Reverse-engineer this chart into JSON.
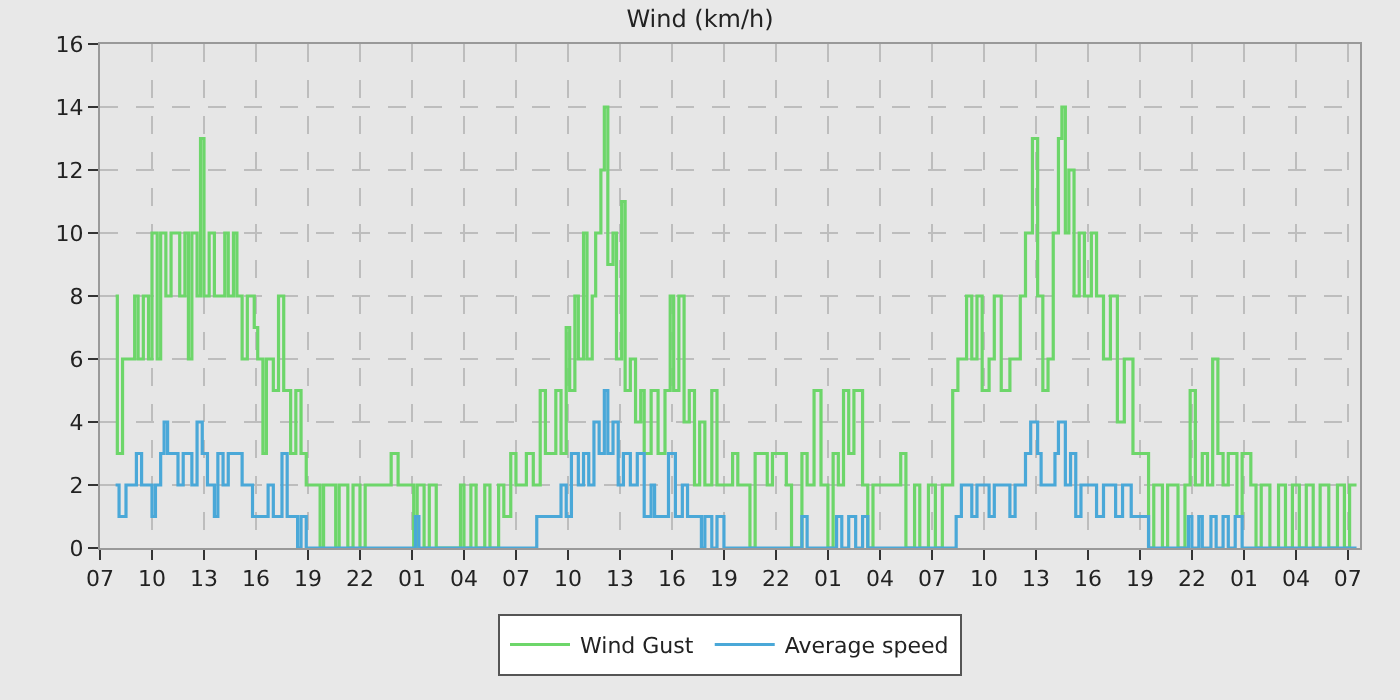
{
  "chart_data": {
    "type": "step",
    "title": "Wind (km/h)",
    "legend": "bottom",
    "grid": true,
    "marker": "none",
    "line_style": "solid",
    "xlim": [
      "--01-01T07:00",
      "--01-04T07:42"
    ],
    "xticks": [
      {
        "value": "--01-01T07:00",
        "label": "07"
      },
      {
        "value": "--01-01T10:00",
        "label": "10"
      },
      {
        "value": "--01-01T13:00",
        "label": "13"
      },
      {
        "value": "--01-01T16:00",
        "label": "16"
      },
      {
        "value": "--01-01T19:00",
        "label": "19"
      },
      {
        "value": "--01-01T22:00",
        "label": "22"
      },
      {
        "value": "--01-02T01:00",
        "label": "01"
      },
      {
        "value": "--01-02T04:00",
        "label": "04"
      },
      {
        "value": "--01-02T07:00",
        "label": "07"
      },
      {
        "value": "--01-02T10:00",
        "label": "10"
      },
      {
        "value": "--01-02T13:00",
        "label": "13"
      },
      {
        "value": "--01-02T16:00",
        "label": "16"
      },
      {
        "value": "--01-02T19:00",
        "label": "19"
      },
      {
        "value": "--01-02T22:00",
        "label": "22"
      },
      {
        "value": "--01-03T01:00",
        "label": "01"
      },
      {
        "value": "--01-03T04:00",
        "label": "04"
      },
      {
        "value": "--01-03T07:00",
        "label": "07"
      },
      {
        "value": "--01-03T10:00",
        "label": "10"
      },
      {
        "value": "--01-03T13:00",
        "label": "13"
      },
      {
        "value": "--01-03T16:00",
        "label": "16"
      },
      {
        "value": "--01-03T19:00",
        "label": "19"
      },
      {
        "value": "--01-03T22:00",
        "label": "22"
      },
      {
        "value": "--01-04T01:00",
        "label": "01"
      },
      {
        "value": "--01-04T04:00",
        "label": "04"
      },
      {
        "value": "--01-04T07:00",
        "label": "07"
      }
    ],
    "ylim": [
      0,
      16
    ],
    "yticks": [
      0,
      2,
      4,
      6,
      8,
      10,
      12,
      14,
      16
    ],
    "series": [
      {
        "name": "Wind Gust",
        "color": "#6dd66a",
        "x": [
          "--01-01T07:54",
          "--01-01T08:00",
          "--01-01T08:18",
          "--01-01T09:00",
          "--01-01T09:12",
          "--01-01T09:30",
          "--01-01T09:48",
          "--01-01T10:00",
          "--01-01T10:18",
          "--01-01T10:30",
          "--01-01T10:48",
          "--01-01T11:06",
          "--01-01T11:36",
          "--01-01T11:54",
          "--01-01T12:06",
          "--01-01T12:18",
          "--01-01T12:36",
          "--01-01T12:48",
          "--01-01T13:00",
          "--01-01T13:18",
          "--01-01T13:36",
          "--01-01T14:12",
          "--01-01T14:24",
          "--01-01T14:42",
          "--01-01T14:54",
          "--01-01T15:12",
          "--01-01T15:30",
          "--01-01T15:54",
          "--01-01T16:06",
          "--01-01T16:24",
          "--01-01T16:36",
          "--01-01T17:00",
          "--01-01T17:18",
          "--01-01T17:36",
          "--01-01T18:00",
          "--01-01T18:18",
          "--01-01T18:36",
          "--01-01T18:54",
          "--01-01T19:42",
          "--01-01T19:54",
          "--01-01T20:36",
          "--01-01T20:48",
          "--01-01T21:18",
          "--01-01T21:36",
          "--01-01T22:00",
          "--01-01T22:18",
          "--01-01T23:48",
          "--01-02T00:12",
          "--01-02T01:06",
          "--01-02T01:18",
          "--01-02T01:42",
          "--01-02T02:00",
          "--01-02T02:24",
          "--01-02T02:42",
          "--01-02T03:48",
          "--01-02T04:00",
          "--01-02T04:24",
          "--01-02T04:42",
          "--01-02T05:12",
          "--01-02T05:30",
          "--01-02T06:00",
          "--01-02T06:18",
          "--01-02T06:42",
          "--01-02T07:00",
          "--01-02T07:36",
          "--01-02T08:00",
          "--01-02T08:24",
          "--01-02T08:42",
          "--01-02T09:18",
          "--01-02T09:36",
          "--01-02T09:54",
          "--01-02T10:06",
          "--01-02T10:24",
          "--01-02T10:36",
          "--01-02T10:54",
          "--01-02T11:06",
          "--01-02T11:24",
          "--01-02T11:36",
          "--01-02T11:54",
          "--01-02T12:06",
          "--01-02T12:18",
          "--01-02T12:36",
          "--01-02T12:48",
          "--01-02T13:06",
          "--01-02T13:18",
          "--01-02T13:36",
          "--01-02T13:54",
          "--01-02T14:12",
          "--01-02T14:24",
          "--01-02T14:48",
          "--01-02T15:12",
          "--01-02T15:36",
          "--01-02T15:54",
          "--01-02T16:06",
          "--01-02T16:24",
          "--01-02T16:42",
          "--01-02T17:00",
          "--01-02T17:18",
          "--01-02T17:36",
          "--01-02T17:54",
          "--01-02T18:18",
          "--01-02T18:36",
          "--01-02T19:00",
          "--01-02T19:30",
          "--01-02T19:48",
          "--01-02T20:30",
          "--01-02T20:48",
          "--01-02T21:30",
          "--01-02T21:48",
          "--01-02T22:36",
          "--01-02T22:54",
          "--01-02T23:30",
          "--01-02T23:48",
          "--01-03T00:12",
          "--01-03T00:36",
          "--01-03T01:00",
          "--01-03T01:18",
          "--01-03T01:36",
          "--01-03T01:54",
          "--01-03T02:12",
          "--01-03T02:30",
          "--01-03T03:00",
          "--01-03T03:18",
          "--01-03T03:36",
          "--01-03T04:00",
          "--01-03T05:12",
          "--01-03T05:30",
          "--01-03T06:00",
          "--01-03T06:18",
          "--01-03T06:48",
          "--01-03T07:12",
          "--01-03T07:36",
          "--01-03T08:12",
          "--01-03T08:30",
          "--01-03T09:00",
          "--01-03T09:18",
          "--01-03T09:36",
          "--01-03T09:54",
          "--01-03T10:18",
          "--01-03T10:36",
          "--01-03T11:00",
          "--01-03T11:30",
          "--01-03T12:06",
          "--01-03T12:24",
          "--01-03T12:48",
          "--01-03T13:06",
          "--01-03T13:24",
          "--01-03T13:42",
          "--01-03T14:00",
          "--01-03T14:18",
          "--01-03T14:30",
          "--01-03T14:42",
          "--01-03T14:54",
          "--01-03T15:12",
          "--01-03T15:30",
          "--01-03T15:48",
          "--01-03T16:12",
          "--01-03T16:30",
          "--01-03T16:54",
          "--01-03T17:18",
          "--01-03T17:42",
          "--01-03T18:06",
          "--01-03T18:36",
          "--01-03T19:30",
          "--01-03T19:48",
          "--01-03T20:18",
          "--01-03T20:36",
          "--01-03T21:12",
          "--01-03T21:36",
          "--01-03T21:54",
          "--01-03T22:12",
          "--01-03T22:36",
          "--01-03T22:54",
          "--01-03T23:12",
          "--01-03T23:30",
          "--01-03T23:48",
          "--01-04T00:06",
          "--01-04T00:36",
          "--01-04T00:54",
          "--01-04T01:24",
          "--01-04T01:42",
          "--01-04T02:00",
          "--01-04T02:30",
          "--01-04T03:00",
          "--01-04T03:24",
          "--01-04T03:48",
          "--01-04T04:12",
          "--01-04T04:36",
          "--01-04T05:00",
          "--01-04T05:24",
          "--01-04T05:54",
          "--01-04T06:24",
          "--01-04T06:48",
          "--01-04T07:06",
          "--01-04T07:30"
        ],
        "values": [
          8,
          3,
          6,
          8,
          6,
          8,
          6,
          10,
          6,
          10,
          8,
          10,
          8,
          10,
          6,
          10,
          8,
          13,
          8,
          10,
          8,
          10,
          8,
          10,
          8,
          6,
          8,
          7,
          6,
          3,
          6,
          5,
          8,
          5,
          3,
          5,
          3,
          2,
          0,
          2,
          0,
          2,
          0,
          2,
          0,
          2,
          3,
          2,
          0,
          2,
          0,
          2,
          0,
          0,
          2,
          0,
          2,
          0,
          2,
          0,
          2,
          1,
          3,
          2,
          3,
          2,
          5,
          3,
          5,
          3,
          7,
          5,
          8,
          6,
          10,
          6,
          8,
          10,
          12,
          14,
          9,
          10,
          6,
          11,
          5,
          6,
          4,
          5,
          3,
          5,
          3,
          5,
          8,
          5,
          8,
          4,
          5,
          2,
          4,
          2,
          5,
          2,
          2,
          3,
          2,
          0,
          3,
          2,
          3,
          2,
          0,
          3,
          2,
          5,
          2,
          0,
          3,
          2,
          5,
          3,
          5,
          2,
          0,
          2,
          2,
          3,
          0,
          2,
          0,
          2,
          0,
          2,
          5,
          6,
          8,
          6,
          8,
          5,
          6,
          8,
          5,
          6,
          8,
          10,
          13,
          8,
          5,
          6,
          10,
          13,
          14,
          10,
          12,
          8,
          10,
          8,
          10,
          8,
          6,
          8,
          4,
          6,
          3,
          0,
          2,
          0,
          2,
          0,
          2,
          5,
          2,
          3,
          2,
          6,
          3,
          2,
          3,
          1,
          3,
          2,
          0,
          2,
          0,
          2,
          0,
          2,
          0,
          2,
          0,
          2,
          0,
          2,
          0,
          2,
          2
        ]
      },
      {
        "name": "Average speed",
        "color": "#4aa8d8",
        "x": [
          "--01-01T07:54",
          "--01-01T08:06",
          "--01-01T08:30",
          "--01-01T09:06",
          "--01-01T09:24",
          "--01-01T10:00",
          "--01-01T10:12",
          "--01-01T10:30",
          "--01-01T10:42",
          "--01-01T10:54",
          "--01-01T11:30",
          "--01-01T11:48",
          "--01-01T12:18",
          "--01-01T12:36",
          "--01-01T12:54",
          "--01-01T13:12",
          "--01-01T13:36",
          "--01-01T13:48",
          "--01-01T14:06",
          "--01-01T14:24",
          "--01-01T15:12",
          "--01-01T15:48",
          "--01-01T16:42",
          "--01-01T17:00",
          "--01-01T17:30",
          "--01-01T17:48",
          "--01-01T18:24",
          "--01-01T18:36",
          "--01-01T18:54",
          "--01-02T01:12",
          "--01-02T01:24",
          "--01-02T08:12",
          "--01-02T09:36",
          "--01-02T09:54",
          "--01-02T10:12",
          "--01-02T10:36",
          "--01-02T10:54",
          "--01-02T11:12",
          "--01-02T11:30",
          "--01-02T11:48",
          "--01-02T12:06",
          "--01-02T12:18",
          "--01-02T12:36",
          "--01-02T12:54",
          "--01-02T13:12",
          "--01-02T13:36",
          "--01-02T14:00",
          "--01-02T14:24",
          "--01-02T14:48",
          "--01-02T15:00",
          "--01-02T15:48",
          "--01-02T16:12",
          "--01-02T16:36",
          "--01-02T16:54",
          "--01-02T17:42",
          "--01-02T17:54",
          "--01-02T18:18",
          "--01-02T18:36",
          "--01-02T19:00",
          "--01-02T23:30",
          "--01-02T23:48",
          "--01-03T01:30",
          "--01-03T01:48",
          "--01-03T02:12",
          "--01-03T02:36",
          "--01-03T03:00",
          "--01-03T03:18",
          "--01-03T08:24",
          "--01-03T08:42",
          "--01-03T09:18",
          "--01-03T09:36",
          "--01-03T10:18",
          "--01-03T10:36",
          "--01-03T11:30",
          "--01-03T11:48",
          "--01-03T12:24",
          "--01-03T12:42",
          "--01-03T13:06",
          "--01-03T13:18",
          "--01-03T14:06",
          "--01-03T14:18",
          "--01-03T14:42",
          "--01-03T15:00",
          "--01-03T15:18",
          "--01-03T15:36",
          "--01-03T16:30",
          "--01-03T16:54",
          "--01-03T17:36",
          "--01-03T18:00",
          "--01-03T18:30",
          "--01-03T19:30",
          "--01-03T21:48",
          "--01-03T22:00",
          "--01-03T22:24",
          "--01-03T22:36",
          "--01-03T23:06",
          "--01-03T23:24",
          "--01-03T23:48",
          "--01-04T00:06",
          "--01-04T00:30",
          "--01-04T00:54",
          "--01-04T07:30"
        ],
        "values": [
          2,
          1,
          2,
          3,
          2,
          1,
          2,
          3,
          4,
          3,
          2,
          3,
          2,
          4,
          3,
          2,
          1,
          3,
          2,
          3,
          2,
          1,
          2,
          1,
          3,
          1,
          0,
          1,
          0,
          1,
          0,
          1,
          2,
          1,
          3,
          2,
          3,
          2,
          4,
          3,
          5,
          3,
          4,
          2,
          3,
          2,
          3,
          1,
          2,
          1,
          3,
          1,
          2,
          1,
          0,
          1,
          0,
          1,
          0,
          1,
          0,
          1,
          0,
          1,
          0,
          1,
          0,
          1,
          2,
          1,
          2,
          1,
          2,
          1,
          2,
          3,
          4,
          3,
          2,
          3,
          4,
          2,
          3,
          1,
          2,
          1,
          2,
          1,
          2,
          1,
          0,
          1,
          0,
          1,
          0,
          1,
          0,
          1,
          0,
          1,
          0,
          0
        ]
      }
    ]
  }
}
